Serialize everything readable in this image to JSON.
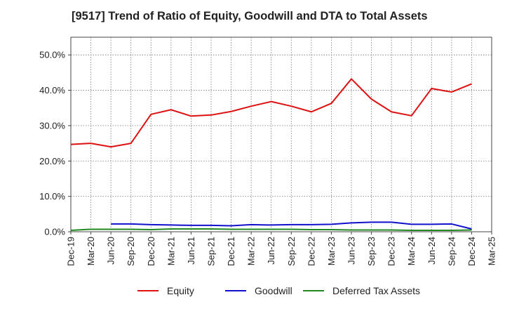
{
  "chart_data": {
    "type": "line",
    "title": "[9517]  Trend of Ratio of Equity, Goodwill and DTA to Total Assets",
    "xlabel": "",
    "ylabel": "",
    "categories": [
      "Dec-19",
      "Mar-20",
      "Jun-20",
      "Sep-20",
      "Dec-20",
      "Mar-21",
      "Jun-21",
      "Sep-21",
      "Dec-21",
      "Mar-22",
      "Jun-22",
      "Sep-22",
      "Dec-22",
      "Mar-23",
      "Jun-23",
      "Sep-23",
      "Dec-23",
      "Mar-24",
      "Jun-24",
      "Sep-24",
      "Dec-24",
      "Mar-25"
    ],
    "ylim": [
      0,
      55
    ],
    "yticks": [
      0,
      10,
      20,
      30,
      40,
      50
    ],
    "ytick_labels": [
      "0.0%",
      "10.0%",
      "20.0%",
      "30.0%",
      "40.0%",
      "50.0%"
    ],
    "grid": true,
    "legend": "bottom",
    "series": [
      {
        "name": "Equity",
        "color": "#dd1111",
        "values": [
          24.7,
          25.0,
          24.0,
          25.0,
          33.2,
          34.5,
          32.7,
          33.0,
          34.0,
          35.5,
          36.8,
          35.5,
          33.9,
          36.3,
          43.2,
          37.5,
          33.9,
          32.8,
          40.5,
          39.5,
          41.8,
          null
        ]
      },
      {
        "name": "Goodwill",
        "color": "#1111cc",
        "values": [
          null,
          null,
          2.2,
          2.2,
          2.0,
          1.9,
          1.8,
          1.8,
          1.7,
          2.0,
          1.9,
          2.0,
          2.0,
          2.1,
          2.5,
          2.7,
          2.7,
          2.1,
          2.1,
          2.2,
          0.8,
          null
        ]
      },
      {
        "name": "Deferred Tax Assets",
        "color": "#228822",
        "values": [
          0.4,
          0.7,
          0.7,
          0.7,
          0.6,
          0.8,
          0.8,
          0.8,
          0.7,
          0.7,
          0.7,
          0.7,
          0.6,
          0.6,
          0.5,
          0.5,
          0.5,
          0.4,
          0.4,
          0.4,
          0.5,
          null
        ]
      }
    ]
  }
}
